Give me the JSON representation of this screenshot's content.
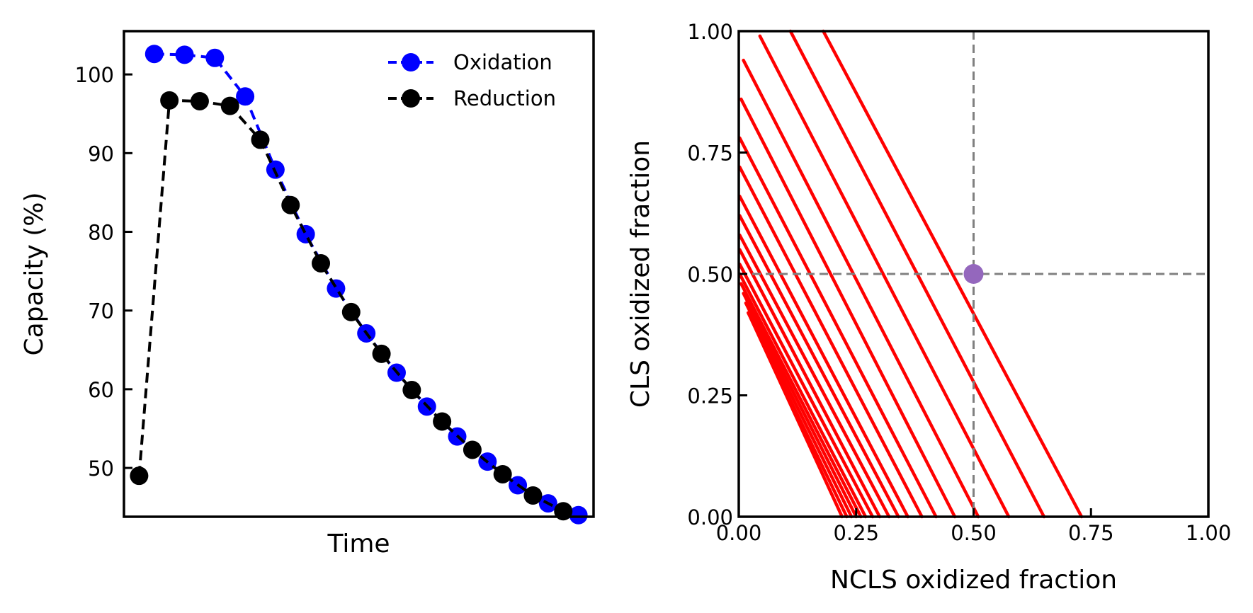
{
  "chart_data": [
    {
      "type": "line",
      "title": "",
      "xlabel": "Time",
      "ylabel": "Capacity (%)",
      "x_ticks_shown": false,
      "ylim": [
        43.8,
        105.5
      ],
      "yticks": [
        50,
        60,
        70,
        80,
        90,
        100
      ],
      "legend_position": "top-right",
      "grid": false,
      "series": [
        {
          "name": "Oxidation",
          "color": "#0000ff",
          "marker": "circle",
          "linestyle": "dashed",
          "x": [
            1,
            2,
            3,
            4,
            5,
            6,
            7,
            8,
            9,
            10,
            11,
            12,
            13,
            14,
            15
          ],
          "y": [
            102.6,
            102.5,
            102.1,
            97.2,
            87.9,
            79.7,
            72.8,
            67.1,
            62.1,
            57.8,
            54.0,
            50.8,
            47.8,
            45.5,
            44.0
          ]
        },
        {
          "name": "Reduction",
          "color": "#000000",
          "marker": "circle",
          "linestyle": "dashed",
          "x": [
            0.5,
            1.5,
            2.5,
            3.5,
            4.5,
            5.5,
            6.5,
            7.5,
            8.5,
            9.5,
            10.5,
            11.5,
            12.5,
            13.5,
            14.5
          ],
          "y": [
            49.0,
            96.7,
            96.6,
            96.0,
            91.7,
            83.4,
            76.0,
            69.8,
            64.5,
            59.9,
            55.9,
            52.3,
            49.2,
            46.5,
            44.5
          ]
        }
      ]
    },
    {
      "type": "line",
      "title": "",
      "xlabel": "NCLS oxidized fraction",
      "ylabel": "CLS oxidized fraction",
      "xlim": [
        0,
        1
      ],
      "ylim": [
        0,
        1
      ],
      "xticks": [
        "0.00",
        "0.25",
        "0.50",
        "0.75",
        "1.00"
      ],
      "yticks": [
        "0.00",
        "0.25",
        "0.50",
        "0.75",
        "1.00"
      ],
      "grid": false,
      "line_color": "#ff0000",
      "reference_lines": {
        "x": 0.5,
        "y": 0.5,
        "color": "#808080",
        "style": "dashed"
      },
      "marked_point": {
        "x": 0.5,
        "y": 0.5,
        "color": "#9467bd"
      },
      "segments": [
        {
          "x1": 0.18,
          "y1": 1.0,
          "x2": 0.73,
          "y2": 0.0
        },
        {
          "x1": 0.11,
          "y1": 1.0,
          "x2": 0.65,
          "y2": 0.0
        },
        {
          "x1": 0.045,
          "y1": 0.99,
          "x2": 0.575,
          "y2": 0.0
        },
        {
          "x1": 0.01,
          "y1": 0.94,
          "x2": 0.51,
          "y2": 0.0
        },
        {
          "x1": 0.005,
          "y1": 0.86,
          "x2": 0.46,
          "y2": 0.0
        },
        {
          "x1": 0.002,
          "y1": 0.78,
          "x2": 0.42,
          "y2": 0.0
        },
        {
          "x1": 0.002,
          "y1": 0.72,
          "x2": 0.39,
          "y2": 0.0
        },
        {
          "x1": 0.002,
          "y1": 0.66,
          "x2": 0.36,
          "y2": 0.0
        },
        {
          "x1": 0.002,
          "y1": 0.62,
          "x2": 0.34,
          "y2": 0.0
        },
        {
          "x1": 0.002,
          "y1": 0.58,
          "x2": 0.32,
          "y2": 0.0
        },
        {
          "x1": 0.002,
          "y1": 0.55,
          "x2": 0.3,
          "y2": 0.0
        },
        {
          "x1": 0.002,
          "y1": 0.52,
          "x2": 0.285,
          "y2": 0.0
        },
        {
          "x1": 0.002,
          "y1": 0.5,
          "x2": 0.27,
          "y2": 0.0
        },
        {
          "x1": 0.005,
          "y1": 0.48,
          "x2": 0.26,
          "y2": 0.0
        },
        {
          "x1": 0.01,
          "y1": 0.46,
          "x2": 0.25,
          "y2": 0.0
        },
        {
          "x1": 0.015,
          "y1": 0.44,
          "x2": 0.24,
          "y2": 0.0
        },
        {
          "x1": 0.02,
          "y1": 0.42,
          "x2": 0.23,
          "y2": 0.0
        },
        {
          "x1": 0.025,
          "y1": 0.41,
          "x2": 0.22,
          "y2": 0.0
        }
      ]
    }
  ]
}
